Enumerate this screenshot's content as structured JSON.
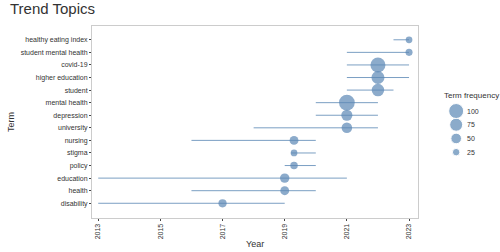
{
  "chart_data": {
    "type": "range_dot",
    "title": "Trend Topics",
    "x_label": "Year",
    "y_label": "Term",
    "categories": [
      "healthy eating index",
      "student mental health",
      "covid-19",
      "higher education",
      "student",
      "mental health",
      "depression",
      "university",
      "nursing",
      "stigma",
      "policy",
      "education",
      "health",
      "disability"
    ],
    "values": [
      2023,
      2023,
      2022,
      2022,
      2022,
      2021,
      2021,
      2021,
      2019.3,
      2019.3,
      2019.3,
      2019,
      2019,
      2017
    ],
    "q1": [
      2022.5,
      2021,
      2021,
      2021,
      2021,
      2020,
      2020,
      2018,
      2016,
      2019.2,
      2019,
      2013,
      2016,
      2013
    ],
    "q3": [
      2023,
      2023,
      2023,
      2023,
      2022.5,
      2022,
      2022,
      2022,
      2020,
      2020,
      2020,
      2021,
      2020,
      2019
    ],
    "frequency": [
      20,
      22,
      100,
      75,
      70,
      110,
      55,
      50,
      35,
      20,
      25,
      40,
      35,
      30
    ],
    "size_legend": {
      "title": "Term frequency",
      "values": [
        25,
        50,
        75,
        100
      ]
    },
    "color": "#5b88b5",
    "xlim": [
      2012.8,
      2023.3
    ],
    "xticks": [
      2013,
      2015,
      2017,
      2019,
      2021,
      2023
    ],
    "grid": false
  }
}
